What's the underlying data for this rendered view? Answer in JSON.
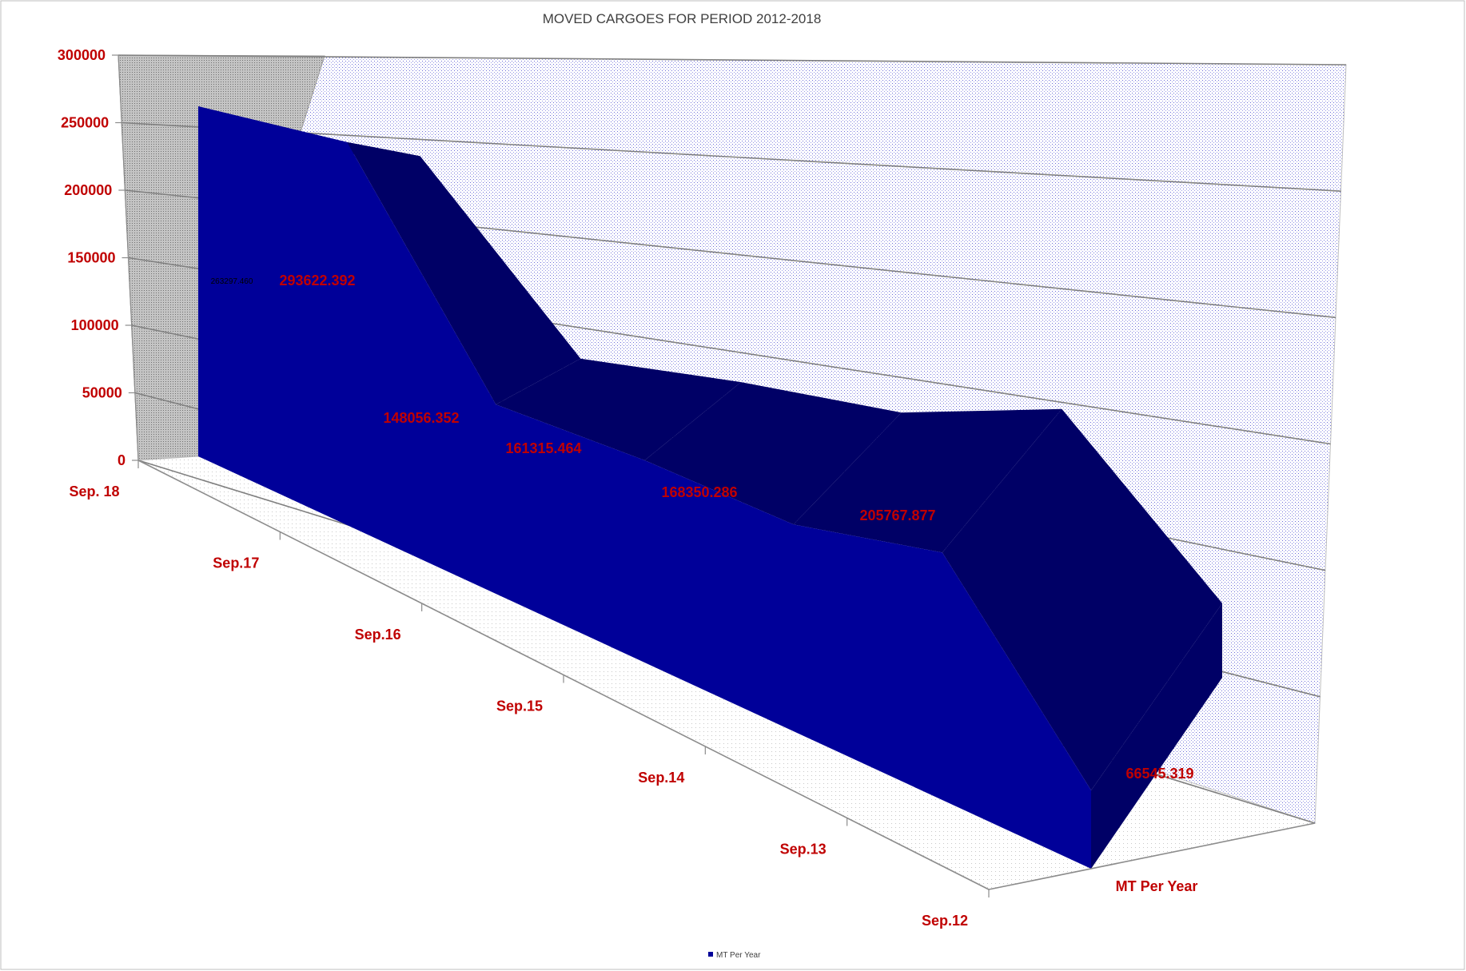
{
  "chart_data": {
    "type": "area",
    "title": "MOVED CARGOES FOR PERIOD 2012-2018",
    "categories": [
      "Sep. 18",
      "Sep.17",
      "Sep.16",
      "Sep.15",
      "Sep.14",
      "Sep.13",
      "Sep.12"
    ],
    "series": [
      {
        "name": "MT Per Year",
        "values": [
          263297.46,
          293622.392,
          148056.352,
          161315.464,
          168350.286,
          205767.877,
          66545.319
        ],
        "data_labels": [
          "263297.460",
          "293622.392",
          "148056.352",
          "161315.464",
          "168350.286",
          "205767.877",
          "66545.319"
        ]
      }
    ],
    "depth_axis_label": "MT Per Year",
    "yticks": [
      "0",
      "50000",
      "100000",
      "150000",
      "200000",
      "250000",
      "300000"
    ],
    "ylim": [
      0,
      300000
    ],
    "grid": true,
    "legend": "bottom",
    "colors": {
      "series_front": "#000099",
      "series_dark": "#000066",
      "tick_text": "#c00000",
      "side_wall": "#a6a6a6",
      "grid_line": "#808080"
    }
  }
}
